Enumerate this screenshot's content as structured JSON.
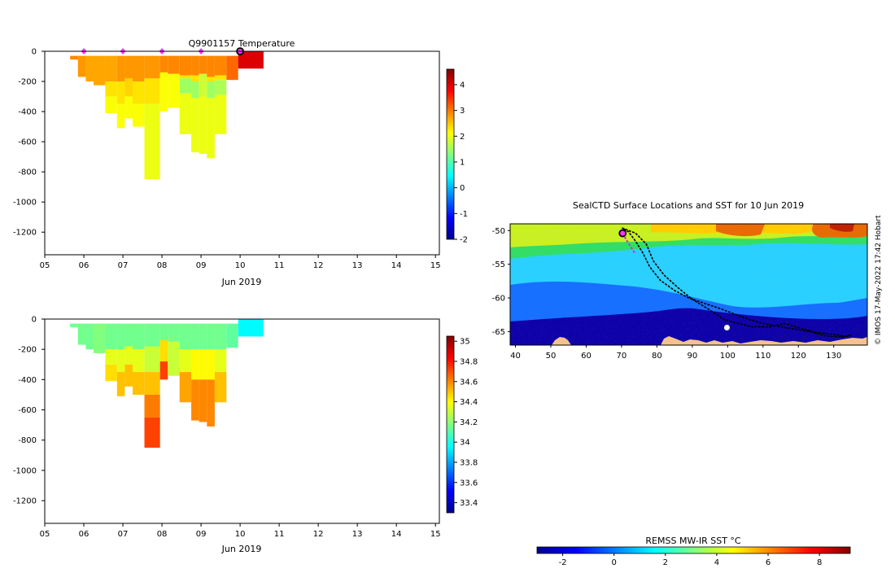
{
  "colors": {
    "land": "#f5c28f",
    "marker_magenta": "#ff33ff",
    "track_black": "#000000",
    "seal_track_magenta": "#cc33cc"
  },
  "chart_data": [
    {
      "id": "temperature",
      "type": "heatmap",
      "title": "Q9901157  Temperature",
      "xlabel": "Jun 2019",
      "ylabel": "",
      "x_ticks": [
        "05",
        "06",
        "07",
        "08",
        "09",
        "10",
        "11",
        "12",
        "13",
        "14",
        "15"
      ],
      "x_tick_values": [
        5,
        6,
        7,
        8,
        9,
        10,
        11,
        12,
        13,
        14,
        15
      ],
      "xlim": [
        5,
        15.1
      ],
      "y_ticks": [
        0,
        -200,
        -400,
        -600,
        -800,
        -1000,
        -1200
      ],
      "ylim": [
        -1350,
        0
      ],
      "colorbar": {
        "min": -2,
        "max": 4.6,
        "ticks": [
          4,
          3,
          2,
          1,
          0,
          -1,
          -2
        ],
        "colormap": "jet"
      },
      "surface_markers": [
        6,
        7,
        8,
        9
      ],
      "current_marker": 10,
      "profiles": [
        {
          "x": 5.65,
          "w": 0.2,
          "top": -30,
          "bottom": -55,
          "layers": [
            {
              "d": -55,
              "v": 2.9
            }
          ]
        },
        {
          "x": 5.85,
          "w": 0.2,
          "top": -30,
          "bottom": -170,
          "layers": [
            {
              "d": -170,
              "v": 2.8
            }
          ]
        },
        {
          "x": 6.05,
          "w": 0.2,
          "top": -30,
          "bottom": -200,
          "layers": [
            {
              "d": -200,
              "v": 2.7
            }
          ]
        },
        {
          "x": 6.25,
          "w": 0.3,
          "top": -30,
          "bottom": -225,
          "layers": [
            {
              "d": -225,
              "v": 2.7
            }
          ]
        },
        {
          "x": 6.55,
          "w": 0.3,
          "top": -30,
          "bottom": -410,
          "layers": [
            {
              "d": -200,
              "v": 2.7
            },
            {
              "d": -300,
              "v": 2.3
            },
            {
              "d": -410,
              "v": 2.1
            }
          ]
        },
        {
          "x": 6.85,
          "w": 0.2,
          "top": -30,
          "bottom": -510,
          "layers": [
            {
              "d": -200,
              "v": 2.8
            },
            {
              "d": -350,
              "v": 2.3
            },
            {
              "d": -510,
              "v": 2.1
            }
          ]
        },
        {
          "x": 7.05,
          "w": 0.2,
          "top": -30,
          "bottom": -445,
          "layers": [
            {
              "d": -180,
              "v": 2.8
            },
            {
              "d": -300,
              "v": 2.4
            },
            {
              "d": -445,
              "v": 2.1
            }
          ]
        },
        {
          "x": 7.25,
          "w": 0.3,
          "top": -30,
          "bottom": -500,
          "layers": [
            {
              "d": -200,
              "v": 2.8
            },
            {
              "d": -350,
              "v": 2.3
            },
            {
              "d": -500,
              "v": 2.1
            }
          ]
        },
        {
          "x": 7.55,
          "w": 0.4,
          "top": -30,
          "bottom": -850,
          "layers": [
            {
              "d": -180,
              "v": 2.8
            },
            {
              "d": -350,
              "v": 2.3
            },
            {
              "d": -850,
              "v": 2.0
            }
          ]
        },
        {
          "x": 7.95,
          "w": 0.2,
          "top": -30,
          "bottom": -400,
          "layers": [
            {
              "d": -140,
              "v": 2.9
            },
            {
              "d": -400,
              "v": 2.1
            }
          ]
        },
        {
          "x": 8.15,
          "w": 0.3,
          "top": -30,
          "bottom": -375,
          "layers": [
            {
              "d": -150,
              "v": 2.9
            },
            {
              "d": -375,
              "v": 2.1
            }
          ]
        },
        {
          "x": 8.45,
          "w": 0.3,
          "top": -30,
          "bottom": -550,
          "layers": [
            {
              "d": -160,
              "v": 2.9
            },
            {
              "d": -180,
              "v": 2.3
            },
            {
              "d": -280,
              "v": 1.5
            },
            {
              "d": -550,
              "v": 2.0
            }
          ]
        },
        {
          "x": 8.75,
          "w": 0.2,
          "top": -30,
          "bottom": -670,
          "layers": [
            {
              "d": -160,
              "v": 2.9
            },
            {
              "d": -200,
              "v": 2.3
            },
            {
              "d": -310,
              "v": 1.5
            },
            {
              "d": -670,
              "v": 2.0
            }
          ]
        },
        {
          "x": 8.95,
          "w": 0.2,
          "top": -30,
          "bottom": -680,
          "layers": [
            {
              "d": -150,
              "v": 2.9
            },
            {
              "d": -300,
              "v": 1.8
            },
            {
              "d": -680,
              "v": 2.0
            }
          ]
        },
        {
          "x": 9.15,
          "w": 0.2,
          "top": -30,
          "bottom": -710,
          "layers": [
            {
              "d": -170,
              "v": 2.9
            },
            {
              "d": -200,
              "v": 2.3
            },
            {
              "d": -310,
              "v": 1.5
            },
            {
              "d": -710,
              "v": 2.0
            }
          ]
        },
        {
          "x": 9.35,
          "w": 0.3,
          "top": -30,
          "bottom": -550,
          "layers": [
            {
              "d": -160,
              "v": 2.9
            },
            {
              "d": -190,
              "v": 2.3
            },
            {
              "d": -290,
              "v": 1.6
            },
            {
              "d": -550,
              "v": 2.0
            }
          ]
        },
        {
          "x": 9.65,
          "w": 0.3,
          "top": -30,
          "bottom": -190,
          "layers": [
            {
              "d": -190,
              "v": 3.1
            }
          ]
        },
        {
          "x": 9.95,
          "w": 0.65,
          "top": 0,
          "bottom": -115,
          "layers": [
            {
              "d": -115,
              "v": 4.0
            }
          ]
        }
      ]
    },
    {
      "id": "salinity",
      "type": "heatmap",
      "title": "",
      "xlabel": "Jun 2019",
      "ylabel": "",
      "x_ticks": [
        "05",
        "06",
        "07",
        "08",
        "09",
        "10",
        "11",
        "12",
        "13",
        "14",
        "15"
      ],
      "x_tick_values": [
        5,
        6,
        7,
        8,
        9,
        10,
        11,
        12,
        13,
        14,
        15
      ],
      "xlim": [
        5,
        15.1
      ],
      "y_ticks": [
        0,
        -200,
        -400,
        -600,
        -800,
        -1000,
        -1200
      ],
      "ylim": [
        -1350,
        0
      ],
      "colorbar": {
        "min": 33.3,
        "max": 35.05,
        "ticks": [
          "35",
          "34.8",
          "34.6",
          "34.4",
          "34.2",
          "34",
          "33.8",
          "33.6",
          "33.4"
        ],
        "tick_values": [
          35,
          34.8,
          34.6,
          34.4,
          34.2,
          34,
          33.8,
          33.6,
          33.4
        ],
        "colormap": "jet"
      },
      "profiles": [
        {
          "x": 5.65,
          "w": 0.2,
          "top": -30,
          "bottom": -55,
          "layers": [
            {
              "d": -55,
              "v": 34.15
            }
          ]
        },
        {
          "x": 5.85,
          "w": 0.2,
          "top": -30,
          "bottom": -170,
          "layers": [
            {
              "d": -170,
              "v": 34.15
            }
          ]
        },
        {
          "x": 6.05,
          "w": 0.2,
          "top": -30,
          "bottom": -200,
          "layers": [
            {
              "d": -200,
              "v": 34.15
            }
          ]
        },
        {
          "x": 6.25,
          "w": 0.3,
          "top": -30,
          "bottom": -225,
          "layers": [
            {
              "d": -225,
              "v": 34.18
            }
          ]
        },
        {
          "x": 6.55,
          "w": 0.3,
          "top": -30,
          "bottom": -410,
          "layers": [
            {
              "d": -200,
              "v": 34.15
            },
            {
              "d": -300,
              "v": 34.35
            },
            {
              "d": -410,
              "v": 34.45
            }
          ]
        },
        {
          "x": 6.85,
          "w": 0.2,
          "top": -30,
          "bottom": -510,
          "layers": [
            {
              "d": -200,
              "v": 34.15
            },
            {
              "d": -350,
              "v": 34.35
            },
            {
              "d": -510,
              "v": 34.5
            }
          ]
        },
        {
          "x": 7.05,
          "w": 0.2,
          "top": -30,
          "bottom": -445,
          "layers": [
            {
              "d": -180,
              "v": 34.15
            },
            {
              "d": -300,
              "v": 34.35
            },
            {
              "d": -445,
              "v": 34.5
            }
          ]
        },
        {
          "x": 7.25,
          "w": 0.3,
          "top": -30,
          "bottom": -500,
          "layers": [
            {
              "d": -200,
              "v": 34.15
            },
            {
              "d": -350,
              "v": 34.35
            },
            {
              "d": -500,
              "v": 34.5
            }
          ]
        },
        {
          "x": 7.55,
          "w": 0.4,
          "top": -30,
          "bottom": -850,
          "layers": [
            {
              "d": -180,
              "v": 34.15
            },
            {
              "d": -350,
              "v": 34.3
            },
            {
              "d": -500,
              "v": 34.5
            },
            {
              "d": -650,
              "v": 34.62
            },
            {
              "d": -850,
              "v": 34.72
            }
          ]
        },
        {
          "x": 7.95,
          "w": 0.2,
          "top": -30,
          "bottom": -400,
          "layers": [
            {
              "d": -140,
              "v": 34.15
            },
            {
              "d": -280,
              "v": 34.45
            },
            {
              "d": -400,
              "v": 34.72
            }
          ]
        },
        {
          "x": 8.15,
          "w": 0.3,
          "top": -30,
          "bottom": -375,
          "layers": [
            {
              "d": -150,
              "v": 34.15
            },
            {
              "d": -375,
              "v": 34.3
            }
          ]
        },
        {
          "x": 8.45,
          "w": 0.3,
          "top": -30,
          "bottom": -550,
          "layers": [
            {
              "d": -200,
              "v": 34.15
            },
            {
              "d": -350,
              "v": 34.35
            },
            {
              "d": -550,
              "v": 34.55
            }
          ]
        },
        {
          "x": 8.75,
          "w": 0.2,
          "top": -30,
          "bottom": -670,
          "layers": [
            {
              "d": -200,
              "v": 34.15
            },
            {
              "d": -400,
              "v": 34.4
            },
            {
              "d": -670,
              "v": 34.6
            }
          ]
        },
        {
          "x": 8.95,
          "w": 0.2,
          "top": -30,
          "bottom": -680,
          "layers": [
            {
              "d": -200,
              "v": 34.15
            },
            {
              "d": -400,
              "v": 34.4
            },
            {
              "d": -680,
              "v": 34.6
            }
          ]
        },
        {
          "x": 9.15,
          "w": 0.2,
          "top": -30,
          "bottom": -710,
          "layers": [
            {
              "d": -200,
              "v": 34.15
            },
            {
              "d": -400,
              "v": 34.4
            },
            {
              "d": -710,
              "v": 34.6
            }
          ]
        },
        {
          "x": 9.35,
          "w": 0.3,
          "top": -30,
          "bottom": -550,
          "layers": [
            {
              "d": -200,
              "v": 34.15
            },
            {
              "d": -350,
              "v": 34.35
            },
            {
              "d": -550,
              "v": 34.5
            }
          ]
        },
        {
          "x": 9.65,
          "w": 0.3,
          "top": -30,
          "bottom": -190,
          "layers": [
            {
              "d": -190,
              "v": 34.12
            }
          ]
        },
        {
          "x": 9.95,
          "w": 0.65,
          "top": 0,
          "bottom": -115,
          "layers": [
            {
              "d": -115,
              "v": 33.95
            }
          ]
        }
      ]
    },
    {
      "id": "sst_map",
      "type": "heatmap",
      "title": "SealCTD Surface Locations and SST for 10 Jun 2019",
      "xlabel": "",
      "ylabel": "",
      "x_ticks": [
        "40",
        "50",
        "60",
        "70",
        "80",
        "90",
        "100",
        "110",
        "120",
        "130"
      ],
      "x_tick_values": [
        40,
        50,
        60,
        70,
        80,
        90,
        100,
        110,
        120,
        130
      ],
      "xlim": [
        38.5,
        139.5
      ],
      "y_ticks": [
        "-50",
        "-55",
        "-60",
        "-65"
      ],
      "y_tick_values": [
        -50,
        -55,
        -60,
        -65
      ],
      "ylim": [
        -67,
        -49
      ],
      "colorbar": {
        "label": "REMSS MW-IR SST °C",
        "min": -3,
        "max": 9.2,
        "ticks": [
          "-2",
          "0",
          "2",
          "4",
          "6",
          "8"
        ],
        "tick_values": [
          -2,
          0,
          2,
          4,
          6,
          8
        ],
        "colormap": "jet"
      },
      "credit": "© IMOS 17-May-2022 17:42 Hobart",
      "seal_position": [
        70.3,
        -50.4
      ],
      "seal_track_recent": [
        [
          70.3,
          -50.4
        ],
        [
          71.5,
          -51.5
        ],
        [
          72.6,
          -52.4
        ],
        [
          73.7,
          -53.3
        ]
      ],
      "seal_track_full": [
        [
          70.1,
          -49.6
        ],
        [
          74,
          -50.4
        ],
        [
          77,
          -52
        ],
        [
          79,
          -54.5
        ],
        [
          82,
          -56.6
        ],
        [
          86,
          -58.5
        ],
        [
          90,
          -60.2
        ],
        [
          95,
          -61.8
        ],
        [
          99,
          -63.2
        ],
        [
          103,
          -63.8
        ],
        [
          107,
          -64.3
        ],
        [
          112,
          -64.3
        ],
        [
          116,
          -63.8
        ],
        [
          120,
          -64.4
        ],
        [
          125,
          -65.1
        ],
        [
          130,
          -65.4
        ],
        [
          133,
          -65.7
        ],
        [
          135,
          -65.5
        ],
        [
          133,
          -65.8
        ],
        [
          128,
          -65.7
        ],
        [
          124,
          -65.1
        ],
        [
          120,
          -64.7
        ],
        [
          115,
          -64.3
        ],
        [
          110,
          -63.8
        ],
        [
          106,
          -63.2
        ],
        [
          102,
          -62.4
        ],
        [
          98,
          -61.6
        ],
        [
          94,
          -60.9
        ],
        [
          89,
          -60
        ],
        [
          85,
          -58.9
        ],
        [
          81,
          -57.4
        ],
        [
          78,
          -55.4
        ],
        [
          76,
          -53.3
        ],
        [
          74,
          -51.6
        ],
        [
          72,
          -50.2
        ],
        [
          70.1,
          -49.6
        ]
      ],
      "ice_patch": [
        99.8,
        -64.4
      ]
    }
  ]
}
